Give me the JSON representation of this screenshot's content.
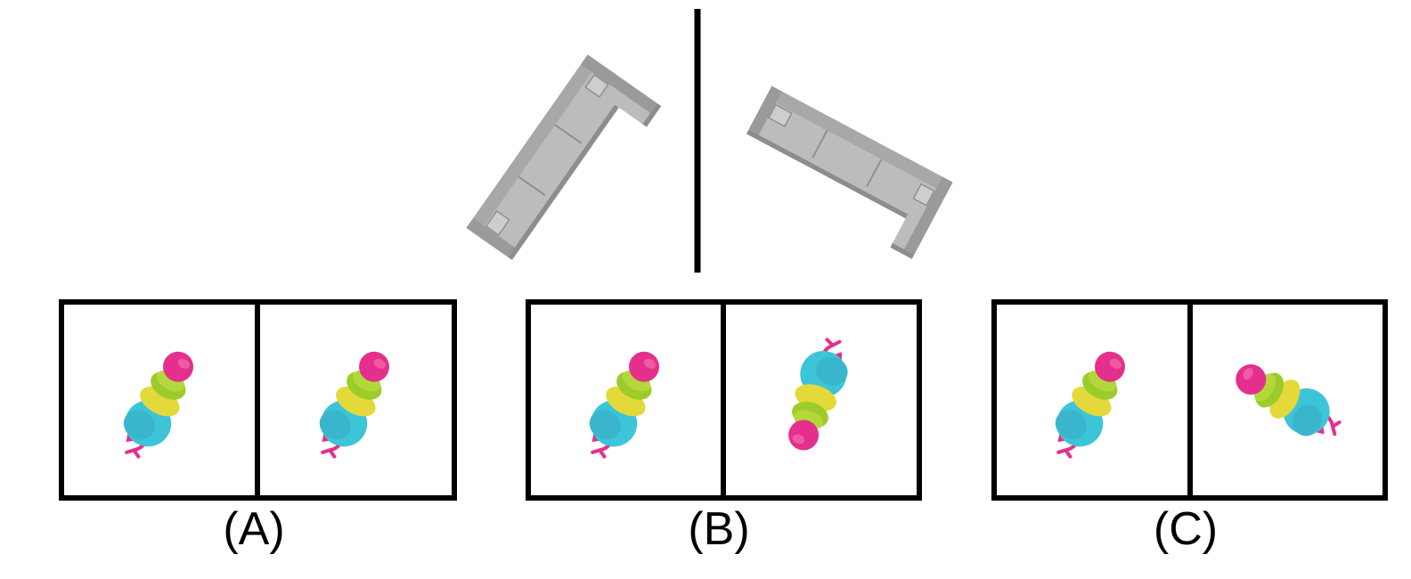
{
  "options": [
    {
      "label": "(A)"
    },
    {
      "label": "(B)"
    },
    {
      "label": "(C)"
    }
  ],
  "colors": {
    "sofa_light": "#bdbbbb",
    "sofa_mid": "#a9a7a7",
    "sofa_dark": "#8e8c8c",
    "head": "#e4308c",
    "band_green": "#9ccc2c",
    "band_yellow": "#e4d93a",
    "body_cyan": "#3cc4d8",
    "frame": "#000000"
  }
}
